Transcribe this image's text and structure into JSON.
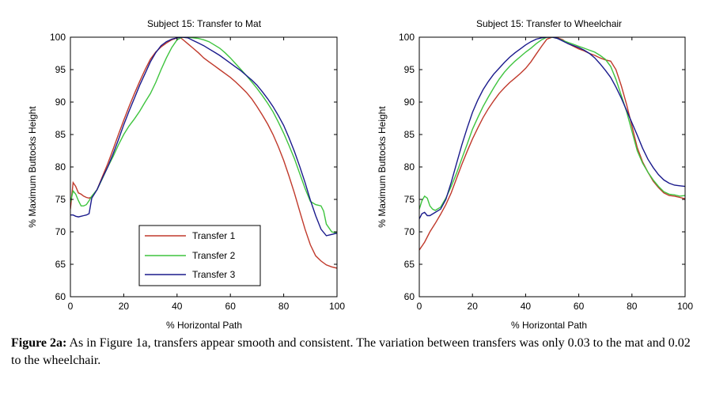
{
  "chart_data": [
    {
      "type": "line",
      "title": "Subject 15: Transfer to Mat",
      "xlabel": "% Horizontal Path",
      "ylabel": "% Maximum Buttocks Height",
      "xlim": [
        0,
        100
      ],
      "ylim": [
        60,
        100
      ],
      "xticks": [
        0,
        20,
        40,
        60,
        80,
        100
      ],
      "yticks": [
        60,
        65,
        70,
        75,
        80,
        85,
        90,
        95,
        100
      ],
      "grid": false,
      "legend_position": "bottom-center",
      "series": [
        {
          "name": "Transfer 1",
          "color": "#c0392b",
          "x": [
            0,
            1,
            2,
            3,
            4,
            5,
            6,
            7,
            8,
            10,
            12,
            14,
            16,
            18,
            20,
            22,
            24,
            26,
            28,
            30,
            32,
            34,
            36,
            38,
            40,
            41,
            42,
            44,
            46,
            48,
            50,
            52,
            54,
            56,
            58,
            60,
            62,
            64,
            66,
            68,
            70,
            72,
            74,
            76,
            78,
            80,
            82,
            84,
            86,
            88,
            90,
            92,
            94,
            96,
            98,
            100
          ],
          "y": [
            73.5,
            77.6,
            77,
            76,
            75.8,
            75.5,
            75.3,
            75.2,
            75.4,
            76.5,
            78.5,
            80.5,
            82.7,
            85,
            87.2,
            89.3,
            91.3,
            93.2,
            95,
            96.6,
            97.7,
            98.5,
            99.1,
            99.6,
            99.9,
            100,
            99.7,
            99,
            98.3,
            97.6,
            96.8,
            96.2,
            95.6,
            95,
            94.4,
            93.8,
            93.1,
            92.3,
            91.5,
            90.5,
            89.3,
            88,
            86.6,
            85,
            83.1,
            81,
            78.6,
            76,
            73.2,
            70.4,
            68,
            66.3,
            65.5,
            64.9,
            64.6,
            64.4
          ]
        },
        {
          "name": "Transfer 2",
          "color": "#3ec43e",
          "x": [
            0,
            1,
            2,
            3,
            4,
            5,
            6,
            7,
            8,
            10,
            12,
            14,
            16,
            18,
            20,
            22,
            24,
            26,
            28,
            30,
            32,
            34,
            36,
            38,
            40,
            42,
            44,
            46,
            48,
            50,
            52,
            54,
            56,
            58,
            60,
            62,
            64,
            66,
            68,
            70,
            72,
            74,
            76,
            78,
            80,
            82,
            84,
            86,
            88,
            90,
            92,
            94,
            95,
            96,
            98,
            100
          ],
          "y": [
            74.5,
            76.3,
            75.8,
            74.8,
            74,
            74,
            74.2,
            74.8,
            75.5,
            76.5,
            78.2,
            80,
            81.6,
            83.4,
            85,
            86.3,
            87.4,
            88.6,
            90,
            91.3,
            93,
            95,
            96.8,
            98.4,
            99.6,
            100,
            100,
            99.9,
            99.8,
            99.6,
            99.3,
            98.8,
            98.3,
            97.6,
            96.8,
            95.9,
            95,
            94.1,
            93.1,
            92.1,
            91,
            89.8,
            88.5,
            86.9,
            85.2,
            83.3,
            81.3,
            79,
            76.7,
            74.7,
            74.2,
            74,
            73.2,
            71.2,
            70,
            69.8
          ]
        },
        {
          "name": "Transfer 3",
          "color": "#1a1a8c",
          "x": [
            0,
            1,
            2,
            3,
            4,
            5,
            6,
            7,
            8,
            10,
            12,
            14,
            16,
            18,
            20,
            22,
            24,
            26,
            28,
            30,
            32,
            34,
            36,
            38,
            40,
            42,
            44,
            46,
            48,
            50,
            52,
            54,
            56,
            58,
            60,
            62,
            64,
            66,
            68,
            70,
            72,
            74,
            76,
            78,
            80,
            82,
            84,
            86,
            88,
            90,
            92,
            94,
            96,
            98,
            100
          ],
          "y": [
            72.6,
            72.6,
            72.4,
            72.3,
            72.4,
            72.5,
            72.6,
            72.8,
            75.2,
            76.5,
            78.3,
            80,
            82,
            84.2,
            86.5,
            88.6,
            90.6,
            92.6,
            94.4,
            96.2,
            97.6,
            98.7,
            99.3,
            99.7,
            99.9,
            100,
            99.9,
            99.5,
            99.1,
            98.7,
            98.2,
            97.7,
            97.2,
            96.6,
            96,
            95.4,
            94.8,
            94.1,
            93.4,
            92.6,
            91.6,
            90.5,
            89.3,
            87.9,
            86.4,
            84.5,
            82.4,
            80.1,
            77.6,
            74.9,
            72.5,
            70.4,
            69.4,
            69.6,
            69.8
          ]
        }
      ]
    },
    {
      "type": "line",
      "title": "Subject 15: Transfer to Wheelchair",
      "xlabel": "% Horizontal Path",
      "ylabel": "% Maximum Buttocks Height",
      "xlim": [
        0,
        100
      ],
      "ylim": [
        60,
        100
      ],
      "xticks": [
        0,
        20,
        40,
        60,
        80,
        100
      ],
      "yticks": [
        60,
        65,
        70,
        75,
        80,
        85,
        90,
        95,
        100
      ],
      "grid": false,
      "series": [
        {
          "name": "Transfer 1",
          "color": "#c0392b",
          "x": [
            0,
            2,
            4,
            6,
            8,
            10,
            12,
            14,
            16,
            18,
            20,
            22,
            24,
            26,
            28,
            30,
            32,
            34,
            36,
            38,
            40,
            42,
            44,
            46,
            48,
            50,
            52,
            54,
            56,
            58,
            60,
            62,
            64,
            66,
            68,
            70,
            72,
            74,
            76,
            78,
            80,
            82,
            84,
            86,
            88,
            90,
            92,
            94,
            96,
            98,
            100
          ],
          "y": [
            67.2,
            68.4,
            70,
            71.3,
            72.7,
            74.2,
            76,
            78.2,
            80.4,
            82.4,
            84.3,
            86,
            87.6,
            89,
            90.2,
            91.3,
            92.2,
            93,
            93.7,
            94.4,
            95.2,
            96.2,
            97.4,
            98.6,
            99.7,
            100,
            99.9,
            99.6,
            99,
            98.6,
            98.2,
            97.9,
            97.5,
            97.2,
            96.8,
            96.5,
            96.3,
            95,
            92.5,
            89.6,
            86.3,
            83,
            80.8,
            79.2,
            77.8,
            76.8,
            76,
            75.6,
            75.5,
            75.3,
            75.1
          ]
        },
        {
          "name": "Transfer 2",
          "color": "#3ec43e",
          "x": [
            0,
            1,
            2,
            3,
            4,
            5,
            6,
            8,
            10,
            12,
            14,
            16,
            18,
            20,
            22,
            24,
            26,
            28,
            30,
            32,
            34,
            36,
            38,
            40,
            42,
            44,
            46,
            48,
            50,
            52,
            54,
            56,
            58,
            60,
            62,
            64,
            66,
            68,
            70,
            72,
            74,
            76,
            78,
            80,
            82,
            84,
            86,
            88,
            90,
            92,
            94,
            96,
            98,
            100
          ],
          "y": [
            73.5,
            74.8,
            75.5,
            75.2,
            74,
            73.5,
            73.3,
            73.8,
            75.2,
            77,
            79,
            81.3,
            83.5,
            85.8,
            87.6,
            89.3,
            90.8,
            92.2,
            93.5,
            94.6,
            95.5,
            96.3,
            97,
            97.7,
            98.3,
            99,
            99.6,
            100,
            100,
            99.8,
            99.5,
            99.2,
            98.9,
            98.6,
            98.3,
            98,
            97.7,
            97.2,
            96.6,
            95.5,
            93.5,
            91,
            88.5,
            85.5,
            82.5,
            80.6,
            79.2,
            78,
            77,
            76.2,
            75.8,
            75.7,
            75.5,
            75.6
          ]
        },
        {
          "name": "Transfer 3",
          "color": "#1a1a8c",
          "x": [
            0,
            1,
            2,
            3,
            4,
            6,
            8,
            10,
            12,
            14,
            16,
            18,
            20,
            22,
            24,
            26,
            28,
            30,
            32,
            34,
            36,
            38,
            40,
            42,
            44,
            46,
            48,
            50,
            52,
            54,
            56,
            58,
            60,
            62,
            64,
            66,
            68,
            70,
            72,
            74,
            76,
            78,
            80,
            82,
            84,
            86,
            88,
            90,
            92,
            94,
            96,
            98,
            100
          ],
          "y": [
            72,
            72.8,
            73,
            72.5,
            72.5,
            73,
            73.5,
            75,
            77.6,
            80.5,
            83.4,
            86,
            88.4,
            90.3,
            91.9,
            93.2,
            94.3,
            95.2,
            96.1,
            96.9,
            97.6,
            98.2,
            98.8,
            99.3,
            99.7,
            99.9,
            100,
            100,
            99.8,
            99.4,
            99,
            98.7,
            98.4,
            98,
            97.5,
            96.8,
            95.9,
            94.9,
            93.8,
            92.3,
            90.6,
            88.7,
            86.8,
            84.9,
            82.9,
            81.2,
            79.9,
            78.8,
            78,
            77.5,
            77.2,
            77.1,
            77
          ]
        }
      ]
    }
  ],
  "legend": {
    "entries": [
      "Transfer 1",
      "Transfer 2",
      "Transfer 3"
    ]
  },
  "caption": {
    "label": "Figure 2a:",
    "text": " As in Figure 1a, transfers appear smooth and consistent. The variation between transfers was only 0.03 to the mat and 0.02 to the wheelchair."
  }
}
